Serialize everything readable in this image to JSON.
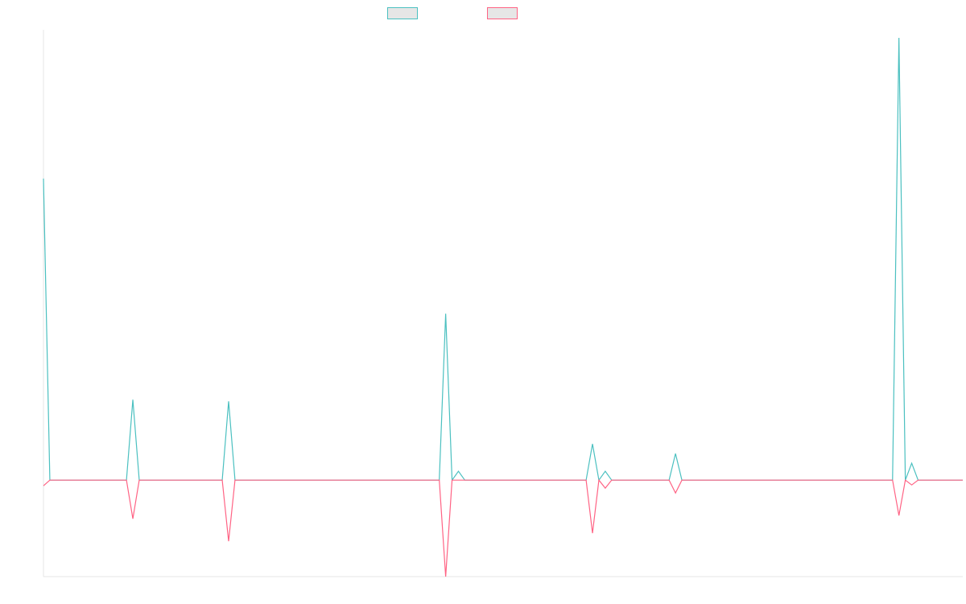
{
  "chart_data": {
    "type": "line",
    "title": "",
    "xlabel": "",
    "ylabel": "",
    "x_count": 145,
    "ylim": [
      -12,
      56
    ],
    "grid": false,
    "legend_position": "top-center",
    "series": [
      {
        "color": "#4bc0c0",
        "points": [
          {
            "x": 0,
            "y": 37.5
          },
          {
            "x": 1,
            "y": 0
          },
          {
            "x": 13,
            "y": 0
          },
          {
            "x": 14,
            "y": 10
          },
          {
            "x": 15,
            "y": 0
          },
          {
            "x": 28,
            "y": 0
          },
          {
            "x": 29,
            "y": 9.8
          },
          {
            "x": 30,
            "y": 0
          },
          {
            "x": 62,
            "y": 0
          },
          {
            "x": 63,
            "y": 20.7
          },
          {
            "x": 64,
            "y": 0
          },
          {
            "x": 65,
            "y": 1.1
          },
          {
            "x": 66,
            "y": 0
          },
          {
            "x": 85,
            "y": 0
          },
          {
            "x": 86,
            "y": 4.5
          },
          {
            "x": 87,
            "y": 0
          },
          {
            "x": 88,
            "y": 1.1
          },
          {
            "x": 89,
            "y": 0
          },
          {
            "x": 98,
            "y": 0
          },
          {
            "x": 99,
            "y": 3.3
          },
          {
            "x": 100,
            "y": 0
          },
          {
            "x": 133,
            "y": 0
          },
          {
            "x": 134,
            "y": 55
          },
          {
            "x": 135,
            "y": 0
          },
          {
            "x": 136,
            "y": 2.1
          },
          {
            "x": 137,
            "y": 0
          },
          {
            "x": 144,
            "y": 0
          }
        ]
      },
      {
        "color": "#ff6384",
        "points": [
          {
            "x": 0,
            "y": -0.7
          },
          {
            "x": 1,
            "y": 0
          },
          {
            "x": 13,
            "y": 0
          },
          {
            "x": 14,
            "y": -4.8
          },
          {
            "x": 15,
            "y": 0
          },
          {
            "x": 28,
            "y": 0
          },
          {
            "x": 29,
            "y": -7.6
          },
          {
            "x": 30,
            "y": 0
          },
          {
            "x": 62,
            "y": 0
          },
          {
            "x": 63,
            "y": -12
          },
          {
            "x": 64,
            "y": 0
          },
          {
            "x": 85,
            "y": 0
          },
          {
            "x": 86,
            "y": -6.6
          },
          {
            "x": 87,
            "y": 0
          },
          {
            "x": 88,
            "y": -1
          },
          {
            "x": 89,
            "y": 0
          },
          {
            "x": 98,
            "y": 0
          },
          {
            "x": 99,
            "y": -1.6
          },
          {
            "x": 100,
            "y": 0
          },
          {
            "x": 133,
            "y": 0
          },
          {
            "x": 134,
            "y": -4.4
          },
          {
            "x": 135,
            "y": 0
          },
          {
            "x": 136,
            "y": -0.6
          },
          {
            "x": 137,
            "y": 0
          },
          {
            "x": 144,
            "y": 0
          }
        ]
      }
    ]
  }
}
